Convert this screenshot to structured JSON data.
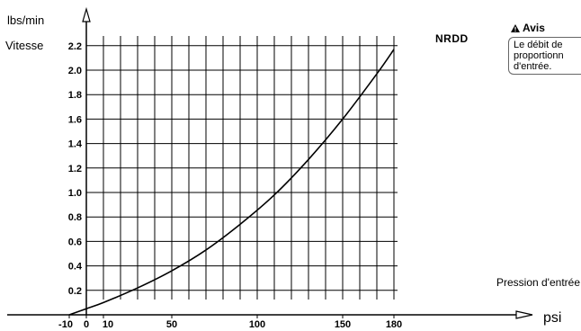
{
  "chart_data": {
    "type": "line",
    "y_unit": "lbs/min",
    "ylabel": "Vitesse",
    "xlabel": "Pression d'entrée",
    "x_unit": "psi",
    "xlim": [
      -10,
      180
    ],
    "ylim": [
      0,
      2.2
    ],
    "x_ticks": [
      "-10",
      "0",
      "10",
      "50",
      "100",
      "150",
      "180"
    ],
    "x_tick_values": [
      -10,
      0,
      10,
      50,
      100,
      150,
      180
    ],
    "y_ticks": [
      "0.2",
      "0.4",
      "0.6",
      "0.8",
      "1.0",
      "1.2",
      "1.4",
      "1.6",
      "1.8",
      "2.0",
      "2.2"
    ],
    "y_tick_values": [
      0.2,
      0.4,
      0.6,
      0.8,
      1.0,
      1.2,
      1.4,
      1.6,
      1.8,
      2.0,
      2.2
    ],
    "grid": true,
    "series": [
      {
        "name": "NRDD",
        "x": [
          -10,
          0,
          10,
          30,
          50,
          70,
          90,
          110,
          130,
          150,
          170,
          180
        ],
        "y": [
          0.0,
          0.05,
          0.1,
          0.22,
          0.36,
          0.53,
          0.74,
          0.98,
          1.27,
          1.6,
          1.97,
          2.17
        ]
      }
    ]
  },
  "notice": {
    "title": "Avis",
    "text_lines": [
      "Le débit de",
      "proportionn",
      "d'entrée."
    ]
  },
  "colors": {
    "line": "#000000",
    "grid": "#000000",
    "notice_border": "#666666"
  }
}
